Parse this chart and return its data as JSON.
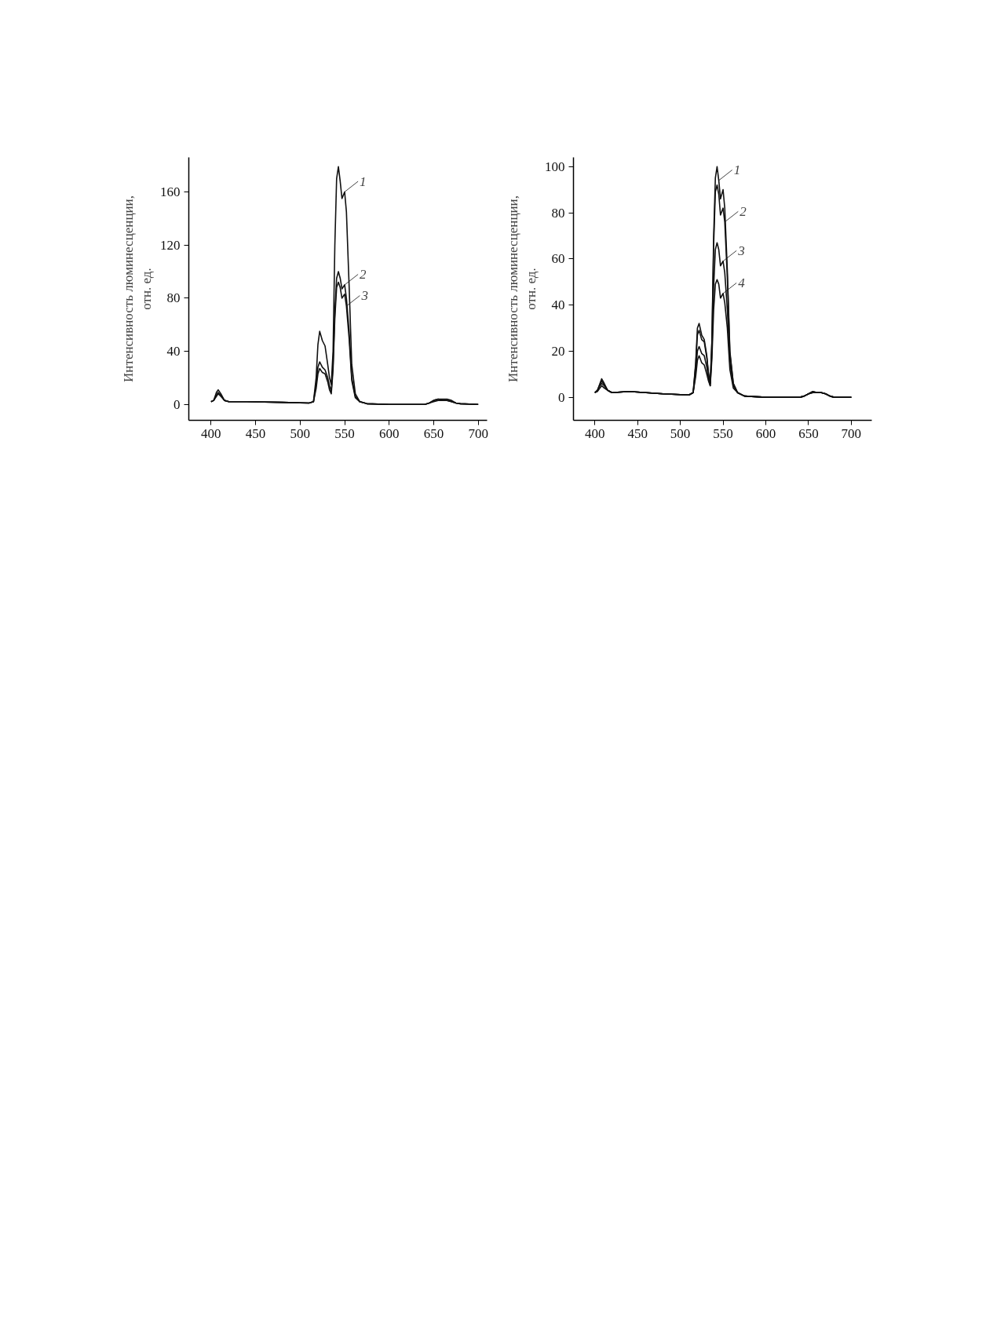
{
  "chart_data": [
    {
      "type": "line",
      "ylabel": "Интенсивность люминесценции,\nотн. ед.",
      "xlim": [
        375,
        710
      ],
      "ylim": [
        -12,
        186
      ],
      "xticks": [
        400,
        450,
        500,
        550,
        600,
        650,
        700
      ],
      "yticks": [
        0,
        40,
        80,
        120,
        160
      ],
      "grid": false,
      "line_style": "solid",
      "x": [
        400,
        403,
        406,
        408,
        411,
        415,
        420,
        440,
        480,
        510,
        515,
        518,
        520,
        522,
        525,
        528,
        531,
        533,
        535,
        537,
        539,
        541,
        543,
        545,
        547,
        550,
        552,
        555,
        558,
        562,
        567,
        575,
        600,
        640,
        645,
        650,
        655,
        660,
        665,
        670,
        675,
        680,
        700
      ],
      "series": [
        {
          "color": "#111111",
          "values": [
            2,
            3,
            9,
            11,
            8,
            3,
            2,
            2,
            1.5,
            1,
            2,
            20,
            45,
            55,
            48,
            44,
            30,
            20,
            15,
            40,
            120,
            170,
            179,
            168,
            155,
            160,
            145,
            90,
            30,
            8,
            2,
            0.5,
            0,
            0,
            1,
            3,
            4,
            4,
            4,
            3,
            1,
            0.5,
            0
          ]
        },
        {
          "color": "#111111",
          "values": [
            2,
            3,
            7,
            9,
            7,
            3,
            2,
            2,
            1.5,
            1,
            2,
            15,
            28,
            32,
            28,
            26,
            20,
            14,
            10,
            30,
            70,
            95,
            100,
            95,
            87,
            90,
            80,
            55,
            20,
            6,
            2,
            0.5,
            0,
            0,
            1,
            3,
            4,
            3,
            3,
            2,
            1,
            0.5,
            0
          ]
        },
        {
          "color": "#111111",
          "values": [
            2,
            3,
            6,
            8,
            6,
            3,
            2,
            2,
            1.5,
            1,
            2,
            12,
            23,
            27,
            24,
            23,
            17,
            11,
            8,
            26,
            65,
            88,
            92,
            88,
            80,
            83,
            74,
            50,
            18,
            5,
            2,
            0.5,
            0,
            0,
            1,
            2,
            3,
            3,
            3,
            2,
            1,
            0.5,
            0
          ]
        }
      ],
      "annotations": [
        {
          "text": "1",
          "x": 550,
          "y": 160
        },
        {
          "text": "2",
          "x": 550,
          "y": 90
        },
        {
          "text": "3",
          "x": 552,
          "y": 74
        }
      ]
    },
    {
      "type": "line",
      "ylabel": "Интенсивность люминесценции,\nотн. ед.",
      "xlim": [
        375,
        724
      ],
      "ylim": [
        -10,
        104
      ],
      "xticks": [
        400,
        450,
        500,
        550,
        600,
        650,
        700
      ],
      "yticks": [
        0,
        20,
        40,
        60,
        80,
        100
      ],
      "grid": false,
      "line_style": "solid",
      "x": [
        400,
        403,
        406,
        408,
        411,
        415,
        420,
        440,
        480,
        510,
        515,
        518,
        520,
        522,
        525,
        528,
        531,
        533,
        535,
        537,
        539,
        541,
        543,
        545,
        547,
        550,
        552,
        555,
        558,
        562,
        567,
        575,
        600,
        640,
        645,
        650,
        655,
        660,
        665,
        670,
        675,
        680,
        700
      ],
      "series": [
        {
          "color": "#111111",
          "values": [
            2,
            3,
            6,
            8,
            6,
            3,
            2,
            2.5,
            1.5,
            1,
            2,
            15,
            30,
            32,
            27,
            25,
            18,
            10,
            6,
            25,
            70,
            95,
            100,
            94,
            86,
            90,
            82,
            55,
            20,
            6,
            2,
            0.5,
            0,
            0,
            0.5,
            1.5,
            2.5,
            2,
            2,
            1.5,
            0.5,
            0,
            0
          ]
        },
        {
          "color": "#111111",
          "values": [
            2,
            3,
            5.5,
            7,
            5.5,
            3,
            2,
            2.5,
            1.5,
            1,
            2,
            14,
            27,
            29,
            25,
            24,
            17,
            10,
            6,
            24,
            66,
            89,
            92,
            88,
            79,
            82,
            76,
            52,
            19,
            6,
            2,
            0.5,
            0,
            0,
            0.5,
            1.5,
            2.5,
            2,
            2,
            1.5,
            0.5,
            0,
            0
          ]
        },
        {
          "color": "#111111",
          "values": [
            2,
            3,
            5,
            6,
            5,
            3,
            2,
            2.5,
            1.5,
            1,
            2,
            11,
            20,
            22,
            19,
            18,
            13,
            8,
            5,
            20,
            48,
            64,
            67,
            64,
            57,
            59,
            54,
            38,
            15,
            5,
            2,
            0.5,
            0,
            0,
            0.5,
            1.5,
            2,
            2,
            2,
            1.5,
            0.5,
            0,
            0
          ]
        },
        {
          "color": "#111111",
          "values": [
            2,
            2.5,
            4,
            5,
            4,
            3,
            2,
            2.5,
            1.5,
            1,
            2,
            9,
            16,
            18,
            15,
            14,
            10,
            7,
            5,
            17,
            38,
            49,
            51,
            49,
            43,
            45,
            41,
            30,
            12,
            4,
            2,
            0.5,
            0,
            0,
            0.5,
            1.5,
            2,
            2,
            2,
            1.5,
            0.5,
            0,
            0
          ]
        }
      ],
      "annotations": [
        {
          "text": "1",
          "x": 545,
          "y": 94
        },
        {
          "text": "2",
          "x": 552,
          "y": 76
        },
        {
          "text": "3",
          "x": 550,
          "y": 59
        },
        {
          "text": "4",
          "x": 550,
          "y": 45
        }
      ]
    }
  ]
}
